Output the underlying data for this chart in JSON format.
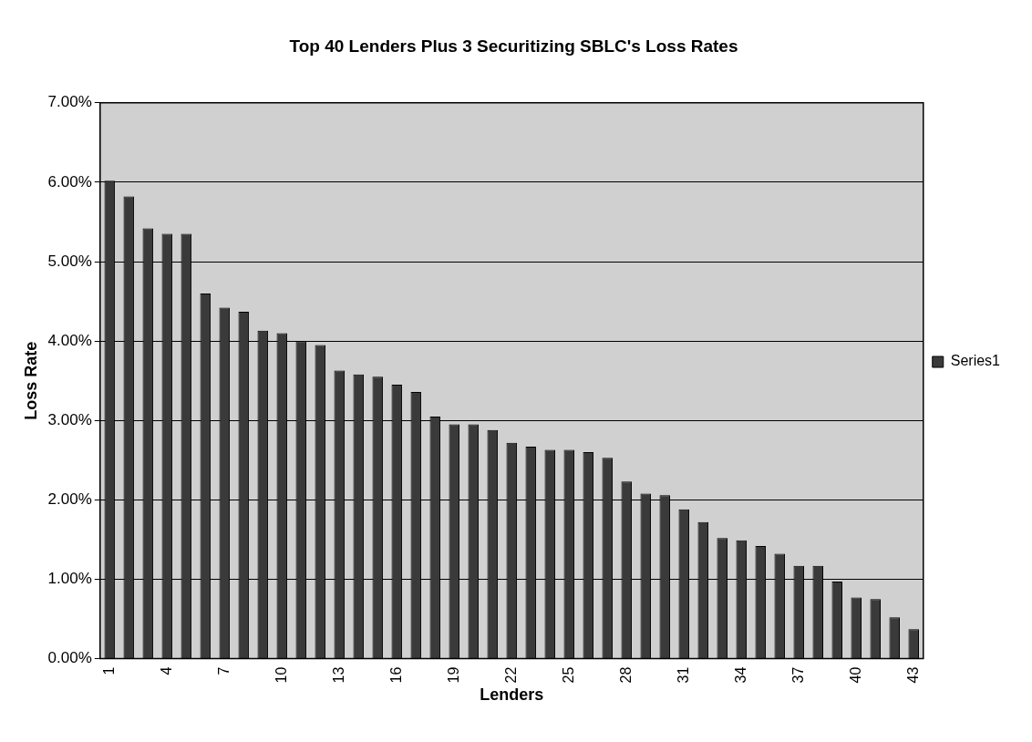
{
  "chart_data": {
    "type": "bar",
    "title": "Top 40 Lenders Plus 3 Securitizing SBLC's Loss Rates",
    "xlabel": "Lenders",
    "ylabel": "Loss Rate",
    "categories": [
      "1",
      null,
      null,
      "4",
      null,
      null,
      "7",
      null,
      null,
      "10",
      null,
      null,
      "13",
      null,
      null,
      "16",
      null,
      null,
      "19",
      null,
      null,
      "22",
      null,
      null,
      "25",
      null,
      null,
      "28",
      null,
      null,
      "31",
      null,
      null,
      "34",
      null,
      null,
      "37",
      null,
      null,
      "40",
      null,
      null,
      "43"
    ],
    "series": [
      {
        "name": "Series1",
        "color": "#3a3a3a",
        "values": [
          6.02,
          5.82,
          5.42,
          5.35,
          5.35,
          4.6,
          4.42,
          4.37,
          4.13,
          4.1,
          4.0,
          3.95,
          3.63,
          3.58,
          3.55,
          3.45,
          3.36,
          3.05,
          2.95,
          2.95,
          2.88,
          2.72,
          2.67,
          2.63,
          2.63,
          2.6,
          2.53,
          2.23,
          2.08,
          2.06,
          1.88,
          1.72,
          1.52,
          1.49,
          1.42,
          1.32,
          1.17,
          1.17,
          0.97,
          0.77,
          0.75,
          0.52,
          0.37
        ]
      }
    ],
    "ylim": [
      0,
      7
    ],
    "yticks": [
      {
        "value": 0,
        "label": "0.00%"
      },
      {
        "value": 1,
        "label": "1.00%"
      },
      {
        "value": 2,
        "label": "2.00%"
      },
      {
        "value": 3,
        "label": "3.00%"
      },
      {
        "value": 4,
        "label": "4.00%"
      },
      {
        "value": 5,
        "label": "5.00%"
      },
      {
        "value": 6,
        "label": "6.00%"
      },
      {
        "value": 7,
        "label": "7.00%"
      }
    ],
    "grid": "y",
    "legend": "right"
  }
}
